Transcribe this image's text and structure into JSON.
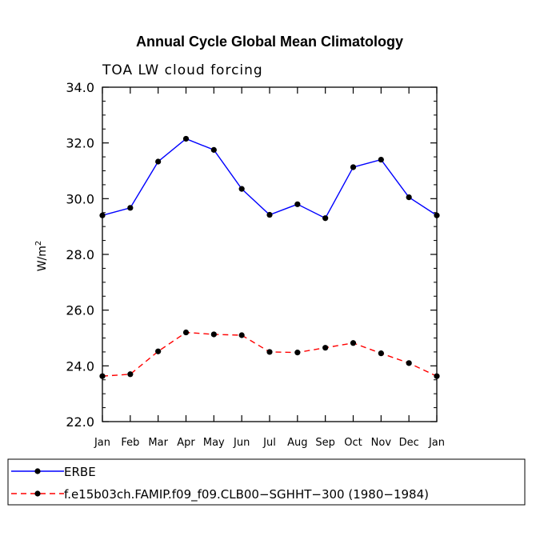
{
  "chart_data": {
    "type": "line",
    "title": "Annual Cycle Global Mean Climatology",
    "subtitle": "TOA LW cloud forcing",
    "ylabel_base": "W/m",
    "ylabel_sup": "2",
    "xlabel": "",
    "categories": [
      "Jan",
      "Feb",
      "Mar",
      "Apr",
      "May",
      "Jun",
      "Jul",
      "Aug",
      "Sep",
      "Oct",
      "Nov",
      "Dec",
      "Jan"
    ],
    "ylim": [
      22.0,
      34.0
    ],
    "yticks": [
      "22.0",
      "24.0",
      "26.0",
      "28.0",
      "30.0",
      "32.0",
      "34.0"
    ],
    "series": [
      {
        "name": "ERBE",
        "color": "#0000ff",
        "dashed": false,
        "values": [
          29.4,
          29.67,
          31.33,
          32.15,
          31.75,
          30.35,
          29.42,
          29.8,
          29.3,
          31.13,
          31.4,
          30.05,
          29.4
        ]
      },
      {
        "name": "f.e15b03ch.FAMIP.f09_f09.CLB00−SGHHT−300 (1980−1984)",
        "color": "#ff0000",
        "dashed": true,
        "values": [
          23.63,
          23.7,
          24.52,
          25.2,
          25.13,
          25.1,
          24.5,
          24.48,
          24.65,
          24.82,
          24.45,
          24.1,
          23.63
        ]
      }
    ]
  }
}
